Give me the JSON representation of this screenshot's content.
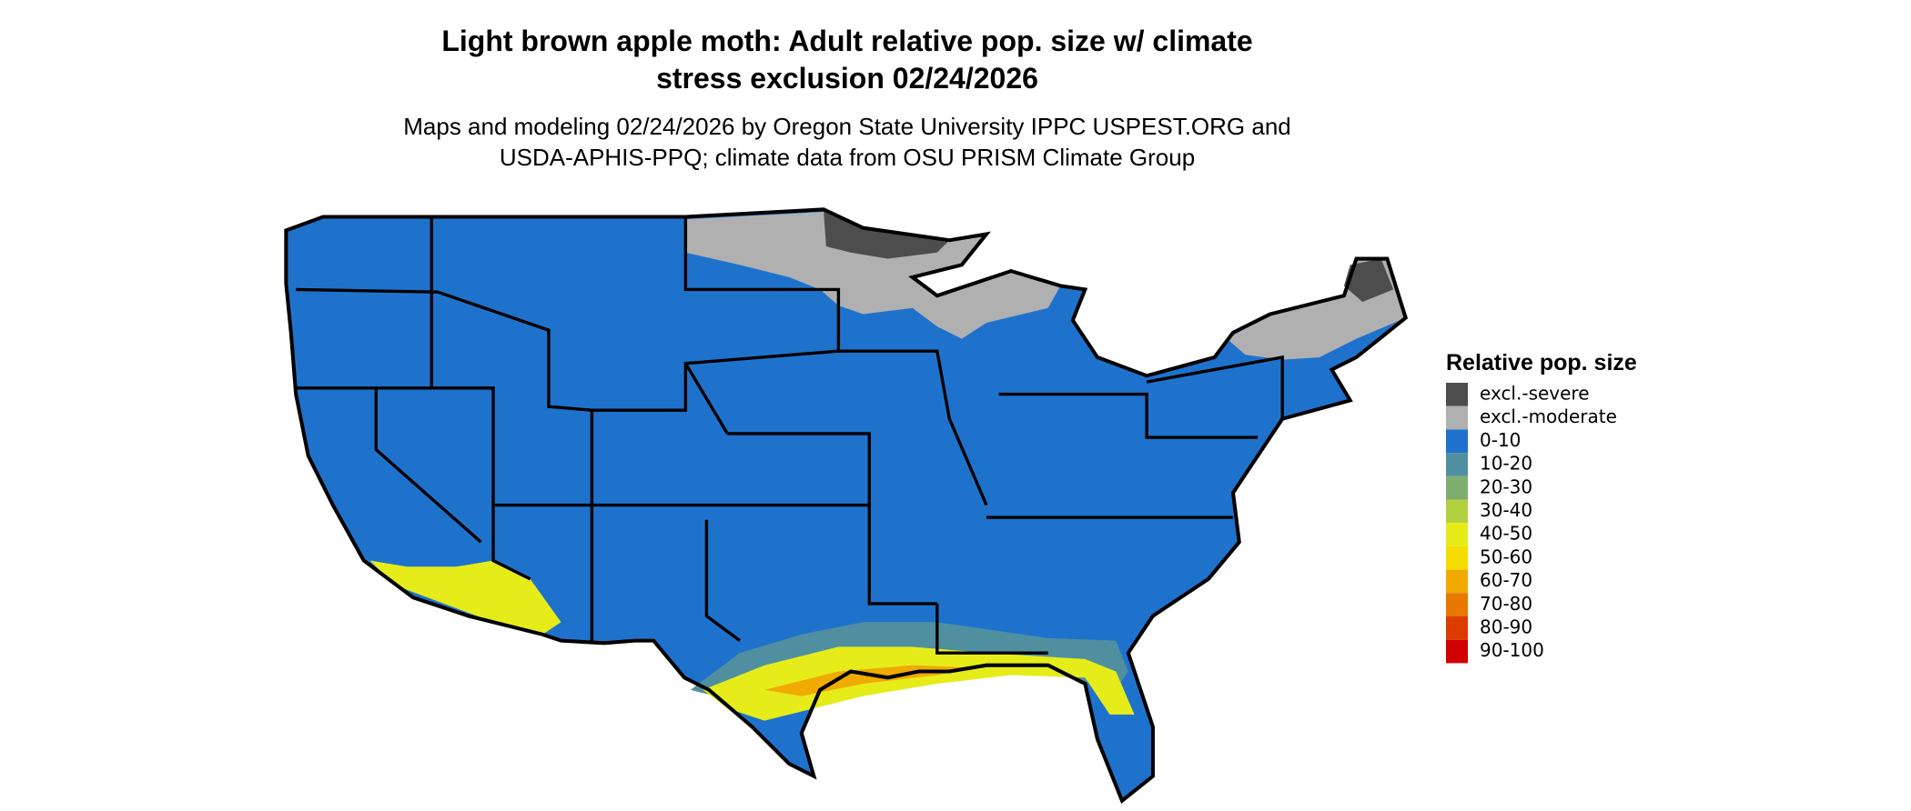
{
  "title_lines": [
    "Light brown apple moth: Adult relative pop. size w/ climate",
    "stress exclusion 02/24/2026"
  ],
  "subtitle_lines": [
    "Maps and modeling 02/24/2026 by Oregon State University IPPC USPEST.ORG and",
    "USDA-APHIS-PPQ; climate data from OSU PRISM Climate Group"
  ],
  "legend": {
    "title": "Relative pop. size",
    "items": [
      {
        "label": "excl.-severe",
        "color": "#4d4d4d"
      },
      {
        "label": "excl.-moderate",
        "color": "#b0b0b0"
      },
      {
        "label": "0-10",
        "color": "#1f72cc"
      },
      {
        "label": "10-20",
        "color": "#4f8fa0"
      },
      {
        "label": "20-30",
        "color": "#7fae70"
      },
      {
        "label": "30-40",
        "color": "#b3d040"
      },
      {
        "label": "40-50",
        "color": "#e5ec1a"
      },
      {
        "label": "50-60",
        "color": "#f7dc00"
      },
      {
        "label": "60-70",
        "color": "#f0aa00"
      },
      {
        "label": "70-80",
        "color": "#e87800"
      },
      {
        "label": "80-90",
        "color": "#dc3c00"
      },
      {
        "label": "90-100",
        "color": "#d00000"
      }
    ]
  }
}
